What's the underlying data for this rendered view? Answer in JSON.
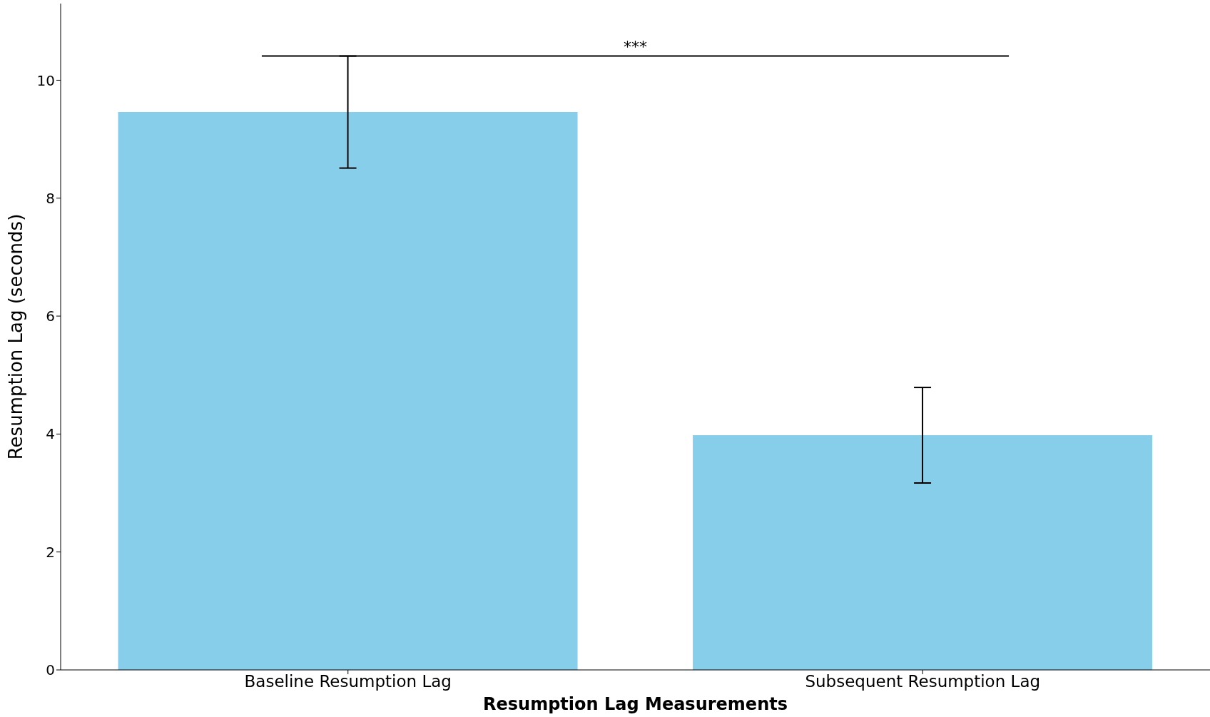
{
  "chart_data": {
    "type": "bar",
    "xlabel": "Resumption Lag Measurements",
    "ylabel": "Resumption Lag (seconds)",
    "categories": [
      "Baseline Resumption Lag",
      "Subsequent Resumption Lag"
    ],
    "values": [
      9.46,
      3.98
    ],
    "errors": [
      0.95,
      0.81
    ],
    "color": "#87ceeb",
    "ylim": [
      0,
      11.3
    ],
    "yticks": [
      0,
      2,
      4,
      6,
      8,
      10
    ],
    "annotations": [
      "***"
    ]
  }
}
